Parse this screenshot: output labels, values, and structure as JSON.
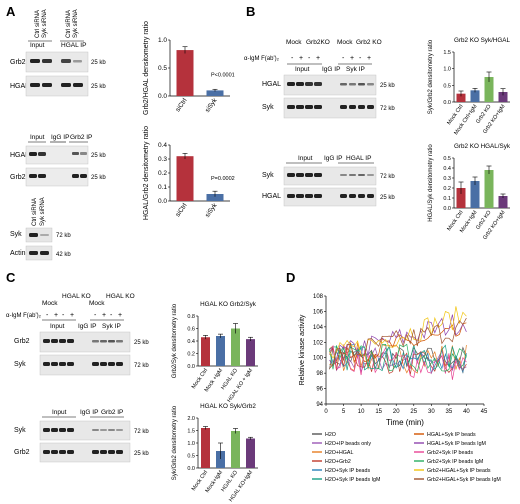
{
  "panels": {
    "A": "A",
    "B": "B",
    "C": "C",
    "D": "D"
  },
  "A": {
    "top_blot": {
      "lanes": [
        "Ctrl siRNA",
        "Syk siRNA",
        "Ctrl siRNA",
        "Syk siRNA"
      ],
      "groups": [
        "Input",
        "HGAL IP"
      ],
      "rows": [
        "Grb2",
        "HGAL"
      ],
      "mw": [
        "25 kb",
        "25 kb"
      ]
    },
    "mid_blot": {
      "groups": [
        "Input",
        "IgG IP",
        "Grb2 IP"
      ],
      "rows": [
        "HGAL",
        "Grb2"
      ],
      "mw": [
        "25 kb",
        "25 kb"
      ]
    },
    "small_blot": {
      "lanes": [
        "Ctrl siRNA",
        "Syk siRNA"
      ],
      "rows": [
        "Syk",
        "Actin"
      ],
      "mw": [
        "72 kb",
        "42 kb"
      ]
    }
  },
  "B": {
    "treat_label": "α-IgM F(ab')₂",
    "top_blot": {
      "col_headers": [
        "Mock",
        "Grb2KO",
        "Mock",
        "Grb2 KO"
      ],
      "signs": [
        "-",
        "+",
        "-",
        "+",
        "-",
        "+",
        "-",
        "+"
      ],
      "groups": [
        "Input",
        "IgG IP",
        "Syk IP"
      ],
      "rows": [
        "HGAL",
        "Syk"
      ],
      "mw": [
        "25 kb",
        "72 kb"
      ]
    },
    "bottom_blot": {
      "groups": [
        "Input",
        "IgG IP",
        "HGAL IP"
      ],
      "rows": [
        "Syk",
        "HGAL"
      ],
      "mw": [
        "72 kb",
        "25 kb"
      ]
    }
  },
  "C": {
    "treat_label": "α-IgM F(ab')₂",
    "top_blot": {
      "col_headers": [
        "Mock",
        "HGAL KO",
        "Mock",
        "HGAL KO"
      ],
      "signs": [
        "-",
        "+",
        "-",
        "+",
        "-",
        "+",
        "-",
        "+"
      ],
      "groups": [
        "Input",
        "IgG IP",
        "Syk IP"
      ],
      "rows": [
        "Grb2",
        "Syk"
      ],
      "mw": [
        "25 kb",
        "72 kb"
      ]
    },
    "bottom_blot": {
      "groups": [
        "Input",
        "IgG IP",
        "Grb2 IP"
      ],
      "rows": [
        "Syk",
        "Grb2"
      ],
      "mw": [
        "72 kb",
        "25 kb"
      ]
    }
  },
  "chart_data": [
    {
      "id": "A1",
      "type": "bar",
      "ylabel": "Grb2/HGAL densitometry ratio",
      "categories": [
        "siCtrl",
        "siSyk"
      ],
      "values": [
        0.82,
        0.1
      ],
      "errors": [
        0.06,
        0.02
      ],
      "colors": [
        "#b5323c",
        "#4a6fa5"
      ],
      "ylim": [
        0,
        1.0
      ],
      "yticks": [
        "0.0",
        "0.5",
        "1.0"
      ],
      "annotation": "P<0.0001"
    },
    {
      "id": "A2",
      "type": "bar",
      "ylabel": "HGAL/Grb2 densitometry ratio",
      "categories": [
        "siCtrl",
        "siSyk"
      ],
      "values": [
        0.32,
        0.05
      ],
      "errors": [
        0.02,
        0.02
      ],
      "colors": [
        "#b5323c",
        "#4a6fa5"
      ],
      "ylim": [
        0,
        0.4
      ],
      "yticks": [
        "0.0",
        "0.1",
        "0.2",
        "0.3",
        "0.4"
      ],
      "annotation": "P=0.0002"
    },
    {
      "id": "B1",
      "type": "bar",
      "title": "Grb2 KO Syk/HGAL",
      "ylabel": "Syk/Grb2 densitometry ratio",
      "categories": [
        "Mock Ctrl",
        "Mock Ctrl+IgM",
        "Grb2 KO",
        "Grb2 KO+IgM"
      ],
      "values": [
        0.25,
        0.35,
        0.75,
        0.3
      ],
      "errors": [
        0.08,
        0.06,
        0.15,
        0.1
      ],
      "colors": [
        "#b5323c",
        "#4a6fa5",
        "#7ab55c",
        "#6b3a7a"
      ],
      "ylim": [
        0,
        1.5
      ],
      "yticks": [
        "0.0",
        "0.5",
        "1.0",
        "1.5"
      ]
    },
    {
      "id": "B2",
      "type": "bar",
      "title": "Grb2 KO HGAL/Syk",
      "ylabel": "HGAL/Syk densitometry ratio",
      "categories": [
        "Mock Ctrl",
        "Mock+IgM",
        "Grb2 KO",
        "Grb2 KO+IgM"
      ],
      "values": [
        0.2,
        0.27,
        0.38,
        0.12
      ],
      "errors": [
        0.06,
        0.04,
        0.04,
        0.02
      ],
      "colors": [
        "#b5323c",
        "#4a6fa5",
        "#7ab55c",
        "#6b3a7a"
      ],
      "ylim": [
        0,
        0.5
      ],
      "yticks": [
        "0.0",
        "0.1",
        "0.2",
        "0.3",
        "0.4",
        "0.5"
      ]
    },
    {
      "id": "C1",
      "type": "bar",
      "title": "HGAL KO Grb2/Syk",
      "ylabel": "Grb2/Syk densitometry ratio",
      "categories": [
        "Mock Ctrl",
        "Mock +IgM",
        "HGAL KO",
        "HGAL KO + IgM"
      ],
      "values": [
        0.46,
        0.48,
        0.6,
        0.43
      ],
      "errors": [
        0.03,
        0.03,
        0.08,
        0.03
      ],
      "colors": [
        "#b5323c",
        "#4a6fa5",
        "#7ab55c",
        "#6b3a7a"
      ],
      "ylim": [
        0,
        0.8
      ],
      "yticks": [
        "0.0",
        "0.2",
        "0.4",
        "0.6",
        "0.8"
      ]
    },
    {
      "id": "C2",
      "type": "bar",
      "title": "HGAL KO Syk/Grb2",
      "ylabel": "Syk/Grb2 densitometry ratio",
      "categories": [
        "Mock Ctrl",
        "Mock+IgM",
        "HGAL KO",
        "HGAL KO+IgM"
      ],
      "values": [
        1.6,
        0.68,
        1.48,
        1.18
      ],
      "errors": [
        0.06,
        0.32,
        0.1,
        0.05
      ],
      "colors": [
        "#b5323c",
        "#4a6fa5",
        "#7ab55c",
        "#6b3a7a"
      ],
      "ylim": [
        0,
        2.0
      ],
      "yticks": [
        "0.0",
        "0.5",
        "1.0",
        "1.5",
        "2.0"
      ]
    },
    {
      "id": "D",
      "type": "line",
      "xlabel": "Time (min)",
      "ylabel": "Relative kinase activity",
      "xlim": [
        0,
        45
      ],
      "ylim": [
        94,
        108
      ],
      "xticks": [
        0,
        5,
        10,
        15,
        20,
        25,
        30,
        35,
        40,
        45
      ],
      "yticks": [
        94,
        96,
        98,
        100,
        102,
        104,
        106,
        108
      ],
      "x_step": 1,
      "series": [
        {
          "name": "H2O",
          "color": "#555555",
          "start": 100,
          "trend": 0,
          "amp": 1.5
        },
        {
          "name": "H2O+IP beads only",
          "color": "#9b59b6",
          "start": 100,
          "trend": -0.02,
          "amp": 1.8
        },
        {
          "name": "H2O+HGAL",
          "color": "#e67e22",
          "start": 100,
          "trend": 0,
          "amp": 2.0
        },
        {
          "name": "H2O+Grb2",
          "color": "#c0392b",
          "start": 100,
          "trend": -0.03,
          "amp": 1.6
        },
        {
          "name": "H2O+Syk IP beads",
          "color": "#2980b9",
          "start": 100,
          "trend": -0.01,
          "amp": 1.8
        },
        {
          "name": "H2O+Syk IP beads IgM",
          "color": "#16a085",
          "start": 100,
          "trend": 0,
          "amp": 1.7
        },
        {
          "name": "HGAL+Syk IP beads",
          "color": "#d35400",
          "start": 100,
          "trend": 0.08,
          "amp": 1.4
        },
        {
          "name": "HGAL+Syk IP beads IgM",
          "color": "#8e44ad",
          "start": 100,
          "trend": 0.12,
          "amp": 1.5
        },
        {
          "name": "Grb2+Syk IP beads",
          "color": "#e84393",
          "start": 100,
          "trend": -0.03,
          "amp": 2.0
        },
        {
          "name": "Grb2+Syk IP beads IgM",
          "color": "#27ae60",
          "start": 100,
          "trend": 0,
          "amp": 1.9
        },
        {
          "name": "Grb2+HGAL+Syk IP beads",
          "color": "#f1c40f",
          "start": 100,
          "trend": 0.14,
          "amp": 1.5
        },
        {
          "name": "Grb2+HGAL+Syk IP beads IgM",
          "color": "#a0522d",
          "start": 100,
          "trend": 0.1,
          "amp": 1.6
        }
      ]
    }
  ]
}
